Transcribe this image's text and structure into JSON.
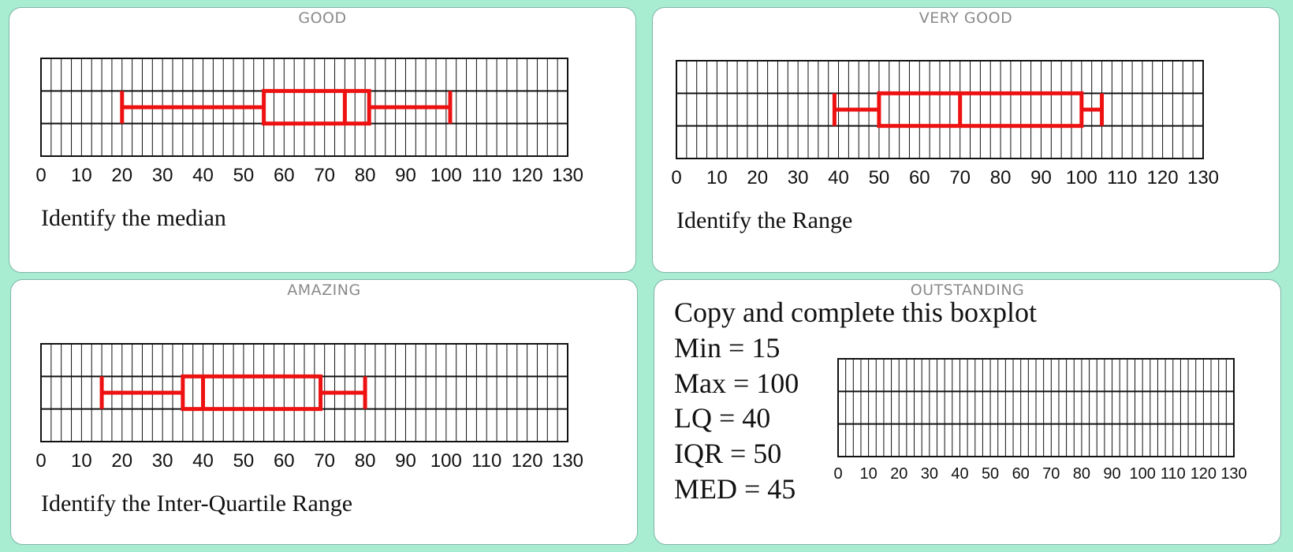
{
  "cards": [
    {
      "title": "GOOD",
      "prompt": "Identify the median",
      "plot": {
        "min": 20,
        "lq": 55,
        "median": 75,
        "uq": 81,
        "max": 101
      }
    },
    {
      "title": "VERY GOOD",
      "prompt": "Identify the Range",
      "plot": {
        "min": 39,
        "lq": 50,
        "median": 70,
        "uq": 100,
        "max": 105
      }
    },
    {
      "title": "AMAZING",
      "prompt": "Identify the Inter-Quartile Range",
      "plot": {
        "min": 15,
        "lq": 35,
        "median": 40,
        "uq": 69,
        "max": 80
      }
    },
    {
      "title": "OUTSTANDING",
      "task": {
        "heading": "Copy and complete this boxplot",
        "lines": [
          "Min = 15",
          "Max = 100",
          "LQ = 40",
          "IQR = 50",
          "MED = 45"
        ]
      }
    }
  ],
  "axis": {
    "ticks": [
      0,
      10,
      20,
      30,
      40,
      50,
      60,
      70,
      80,
      90,
      100,
      110,
      120,
      130
    ],
    "xlim": [
      0,
      130
    ],
    "grid": true
  },
  "colors": {
    "boxplot": "#ee1111",
    "grid": "#111111",
    "background": "#a8ecd2"
  }
}
